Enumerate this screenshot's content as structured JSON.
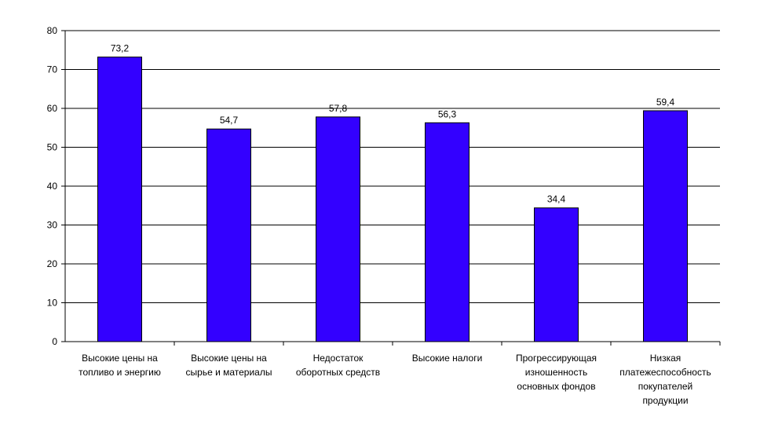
{
  "chart_data": {
    "type": "bar",
    "categories": [
      [
        "Высокие цены на",
        "топливо и энергию"
      ],
      [
        "Высокие цены на",
        "сырье и материалы"
      ],
      [
        "Недостаток",
        "оборотных средств"
      ],
      [
        "Высокие налоги"
      ],
      [
        "Прогрессирующая",
        "изношенность",
        "основных фондов"
      ],
      [
        "Низкая",
        "платежеспособность",
        "покупателей",
        "продукции"
      ]
    ],
    "values": [
      73.2,
      54.7,
      57.8,
      56.3,
      34.4,
      59.4
    ],
    "value_labels": [
      "73,2",
      "54,7",
      "57,8",
      "56,3",
      "34,4",
      "59,4"
    ],
    "ylim": [
      0,
      80
    ],
    "y_ticks": [
      0,
      10,
      20,
      30,
      40,
      50,
      60,
      70,
      80
    ],
    "grid": true,
    "legend": "none",
    "colors": {
      "bar": "#3300FF",
      "bar_border": "#000000",
      "grid": "#000000"
    }
  }
}
